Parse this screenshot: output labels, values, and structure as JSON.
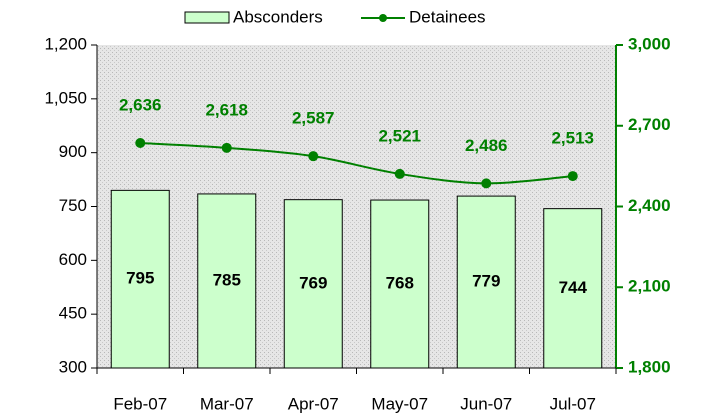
{
  "chart_data": {
    "type": "bar",
    "categories": [
      "Feb-07",
      "Mar-07",
      "Apr-07",
      "May-07",
      "Jun-07",
      "Jul-07"
    ],
    "series": [
      {
        "name": "Absconders",
        "type": "bar",
        "color": "#ccffcc",
        "values": [
          795,
          785,
          769,
          768,
          779,
          744
        ]
      },
      {
        "name": "Detainees",
        "type": "line",
        "axis": "y2",
        "color": "#008000",
        "values": [
          2636,
          2618,
          2587,
          2521,
          2486,
          2513
        ],
        "value_labels": [
          "2,636",
          "2,618",
          "2,587",
          "2,521",
          "2,486",
          "2,513"
        ]
      }
    ],
    "ylim": [
      300,
      1200
    ],
    "yticks": [
      300,
      450,
      600,
      750,
      900,
      {
        "value": 1050,
        "label": "1,050"
      },
      {
        "value": 1200,
        "label": "1,200"
      }
    ],
    "y2lim": [
      1800,
      3000
    ],
    "y2ticks": [
      {
        "value": 1800,
        "label": "1,800"
      },
      {
        "value": 2100,
        "label": "2,100"
      },
      {
        "value": 2400,
        "label": "2,400"
      },
      {
        "value": 2700,
        "label": "2,700"
      },
      {
        "value": 3000,
        "label": "3,000"
      }
    ],
    "grid": false,
    "legend": "top"
  }
}
